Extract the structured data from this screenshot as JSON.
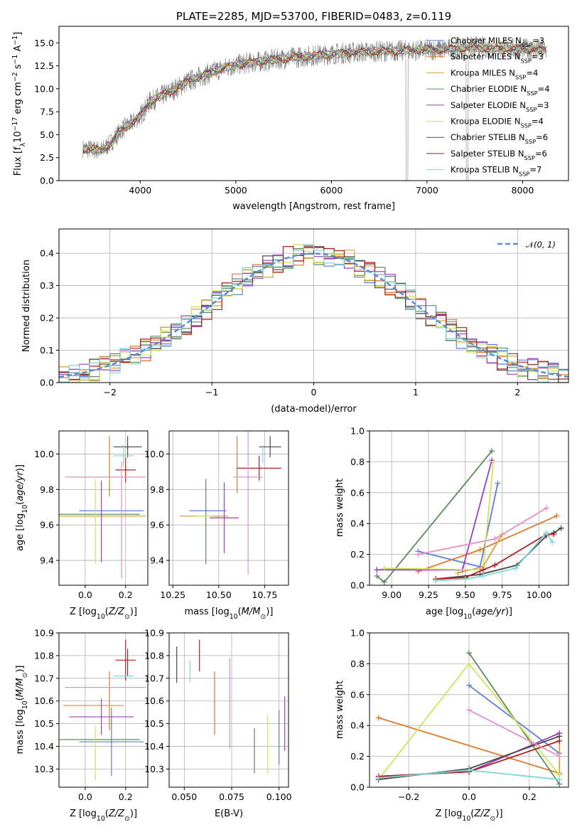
{
  "title": "PLATE=2285, MJD=53700, FIBERID=0483, z=0.119",
  "colors": {
    "Chabrier MILES": "#5b7fd6",
    "Salpeter MILES": "#e0782a",
    "Kroupa MILES": "#d8a234",
    "Chabrier ELODIE": "#5d8c5d",
    "Salpeter ELODIE": "#9b3fc2",
    "Kroupa ELODIE": "#cfe35a",
    "Chabrier STELIB": "#4a4a4a",
    "Salpeter STELIB": "#b01f1f",
    "Kroupa STELIB": "#7fd6d6",
    "extra": "#e98ec7",
    "data": "#808080"
  },
  "legend": [
    {
      "model": "Chabrier MILES",
      "nssp": "3"
    },
    {
      "model": "Salpeter MILES",
      "nssp": "3"
    },
    {
      "model": "Kroupa MILES",
      "nssp": "4"
    },
    {
      "model": "Chabrier ELODIE",
      "nssp": "4"
    },
    {
      "model": "Salpeter ELODIE",
      "nssp": "3"
    },
    {
      "model": "Kroupa ELODIE",
      "nssp": "4"
    },
    {
      "model": "Chabrier STELIB",
      "nssp": "6"
    },
    {
      "model": "Salpeter STELIB",
      "nssp": "6"
    },
    {
      "model": "Kroupa STELIB",
      "nssp": "7"
    }
  ],
  "chart_data": [
    {
      "id": "spectrum",
      "type": "line",
      "xlabel": "wavelength [Angstrom, rest frame]",
      "ylabel": "Flux [f_λ10^-17 erg cm^-2 s^-1 A^-1]",
      "xlim": [
        3150,
        8480
      ],
      "ylim": [
        0,
        16.8
      ],
      "xticks": [
        4000,
        5000,
        6000,
        7000,
        8000
      ],
      "yticks": [
        0.0,
        2.5,
        5.0,
        7.5,
        10.0,
        12.5,
        15.0
      ],
      "continuum": {
        "x": [
          3400,
          3600,
          3700,
          3800,
          3900,
          4000,
          4100,
          4300,
          4500,
          4800,
          5000,
          5200,
          5500,
          5800,
          6000,
          6300,
          6600,
          6900,
          7200,
          7500,
          7800,
          8100,
          8250
        ],
        "y": [
          3.5,
          3.3,
          4.2,
          5.5,
          6.2,
          7.0,
          8.6,
          9.6,
          10.8,
          12.0,
          12.6,
          12.9,
          13.3,
          13.6,
          13.8,
          14.0,
          14.1,
          14.2,
          14.3,
          14.5,
          14.4,
          14.3,
          14.2
        ]
      }
    },
    {
      "id": "residuals",
      "type": "step",
      "xlabel": "(data-model)/error",
      "ylabel": "Normed distribution",
      "xlim": [
        -2.5,
        2.5
      ],
      "ylim": [
        0,
        0.475
      ],
      "xticks": [
        -2,
        -1,
        0,
        1,
        2
      ],
      "yticks": [
        0.0,
        0.1,
        0.2,
        0.3,
        0.4
      ],
      "legend": "N(0,1)",
      "gaussian": {
        "mean": 0,
        "sigma": 1
      }
    },
    {
      "id": "age_vs_Z",
      "type": "errorbar",
      "xlabel": "Z [log10(Z/Z⊙)]",
      "ylabel": "age  [log10(age/yr)]",
      "xlim": [
        -0.13,
        0.31
      ],
      "ylim": [
        9.26,
        10.13
      ],
      "xticks": [
        0.0,
        0.2
      ],
      "yticks": [
        9.4,
        9.6,
        9.8,
        10.0
      ],
      "points": [
        {
          "model": "Chabrier MILES",
          "x": 0.13,
          "xerr": 0.16,
          "y": 9.68,
          "yerr": 0.0
        },
        {
          "model": "Salpeter MILES",
          "x": 0.12,
          "xerr": 0.0,
          "y": 9.93,
          "yerr": 0.17
        },
        {
          "model": "Kroupa MILES",
          "x": 0.04,
          "xerr": 0.26,
          "y": 9.65,
          "yerr": 0.0
        },
        {
          "model": "Chabrier ELODIE",
          "x": 0.05,
          "xerr": 0.22,
          "y": 9.66,
          "yerr": 0.0
        },
        {
          "model": "Salpeter ELODIE",
          "x": 0.08,
          "xerr": 0.0,
          "y": 9.62,
          "yerr": 0.23
        },
        {
          "model": "Kroupa ELODIE",
          "x": 0.05,
          "xerr": 0.0,
          "y": 9.62,
          "yerr": 0.24
        },
        {
          "model": "Chabrier STELIB",
          "x": 0.21,
          "xerr": 0.07,
          "y": 10.04,
          "yerr": 0.06
        },
        {
          "model": "Salpeter STELIB",
          "x": 0.2,
          "xerr": 0.05,
          "y": 9.91,
          "yerr": 0.07
        },
        {
          "model": "Kroupa STELIB",
          "x": 0.19,
          "xerr": 0.05,
          "y": 9.99,
          "yerr": 0.06
        },
        {
          "model": "extra",
          "x": 0.18,
          "xerr": 0.0,
          "y": 9.63,
          "yerr": 0.33
        },
        {
          "model": "extra",
          "x": 0.1,
          "xerr": 0.2,
          "y": 9.87,
          "yerr": 0.0
        }
      ]
    },
    {
      "id": "age_vs_mass",
      "type": "errorbar",
      "xlabel": "mass [log10(M/M⊙)]",
      "ylabel": "",
      "xlim": [
        10.23,
        10.88
      ],
      "ylim": [
        9.26,
        10.13
      ],
      "xticks": [
        10.25,
        10.5,
        10.75
      ],
      "yticks": [
        9.4,
        9.6,
        9.8,
        10.0
      ],
      "points": [
        {
          "model": "Chabrier MILES",
          "x": 10.44,
          "xerr": 0.1,
          "y": 9.68,
          "yerr": 0.0
        },
        {
          "model": "Salpeter MILES",
          "x": 10.6,
          "xerr": 0.0,
          "y": 9.94,
          "yerr": 0.16
        },
        {
          "model": "Kroupa MILES",
          "x": 10.42,
          "xerr": 0.13,
          "y": 9.65,
          "yerr": 0.0
        },
        {
          "model": "Chabrier ELODIE",
          "x": 10.43,
          "xerr": 0.0,
          "y": 9.62,
          "yerr": 0.24
        },
        {
          "model": "Salpeter ELODIE",
          "x": 10.53,
          "xerr": 0.08,
          "y": 9.64,
          "yerr": 0.2
        },
        {
          "model": "Kroupa ELODIE",
          "x": 10.42,
          "xerr": 0.05,
          "y": 9.65,
          "yerr": 0.0
        },
        {
          "model": "Chabrier STELIB",
          "x": 10.78,
          "xerr": 0.06,
          "y": 10.04,
          "yerr": 0.06
        },
        {
          "model": "Salpeter STELIB",
          "x": 10.72,
          "xerr": 0.12,
          "y": 9.92,
          "yerr": 0.07
        },
        {
          "model": "Kroupa STELIB",
          "x": 10.74,
          "xerr": 0.0,
          "y": 10.0,
          "yerr": 0.05
        },
        {
          "model": "extra",
          "x": 10.66,
          "xerr": 0.08,
          "y": 9.87,
          "yerr": 0.55
        }
      ]
    },
    {
      "id": "weight_vs_age",
      "type": "line",
      "xlabel": "age  [log10(age/yr)]",
      "ylabel": "mass weight",
      "xlim": [
        8.85,
        10.2
      ],
      "ylim": [
        0,
        1.0
      ],
      "xticks": [
        9.0,
        9.25,
        9.5,
        9.75,
        10.0
      ],
      "yticks": [
        0.0,
        0.2,
        0.4,
        0.6,
        0.8,
        1.0
      ],
      "series": [
        {
          "model": "Chabrier MILES",
          "x": [
            9.18,
            9.6,
            9.72
          ],
          "y": [
            0.22,
            0.12,
            0.66
          ]
        },
        {
          "model": "Salpeter MILES",
          "x": [
            9.18,
            9.6,
            10.12
          ],
          "y": [
            0.09,
            0.23,
            0.45
          ]
        },
        {
          "model": "Kroupa MILES",
          "x": [
            9.45,
            9.62,
            9.75
          ],
          "y": [
            0.08,
            0.12,
            0.33
          ]
        },
        {
          "model": "Chabrier ELODIE",
          "x": [
            8.9,
            8.95,
            9.68
          ],
          "y": [
            0.06,
            0.02,
            0.87
          ]
        },
        {
          "model": "Salpeter ELODIE",
          "x": [
            8.9,
            9.48,
            9.68
          ],
          "y": [
            0.1,
            0.1,
            0.81
          ]
        },
        {
          "model": "Kroupa ELODIE",
          "x": [
            8.95,
            9.62,
            9.69
          ],
          "y": [
            0.11,
            0.1,
            0.8
          ]
        },
        {
          "model": "Chabrier STELIB",
          "x": [
            9.3,
            9.6,
            9.85,
            10.05,
            10.1,
            10.15
          ],
          "y": [
            0.04,
            0.07,
            0.13,
            0.32,
            0.34,
            0.37
          ]
        },
        {
          "model": "Salpeter STELIB",
          "x": [
            9.3,
            9.5,
            9.62,
            9.7,
            10.05,
            10.1
          ],
          "y": [
            0.04,
            0.05,
            0.1,
            0.13,
            0.33,
            0.33
          ]
        },
        {
          "model": "Kroupa STELIB",
          "x": [
            9.3,
            9.5,
            9.62,
            9.84,
            10.05,
            10.09
          ],
          "y": [
            0.03,
            0.04,
            0.06,
            0.11,
            0.34,
            0.28
          ]
        },
        {
          "model": "extra",
          "x": [
            9.18,
            9.7,
            10.05
          ],
          "y": [
            0.2,
            0.3,
            0.5
          ]
        }
      ]
    },
    {
      "id": "mass_vs_Z",
      "type": "errorbar",
      "xlabel": "Z [log10(Z/Z⊙)]",
      "ylabel": "mass [log10(M/M⊙)]",
      "xlim": [
        -0.13,
        0.31
      ],
      "ylim": [
        10.22,
        10.9
      ],
      "xticks": [
        0.0,
        0.2
      ],
      "yticks": [
        10.3,
        10.4,
        10.5,
        10.6,
        10.7,
        10.8,
        10.9
      ],
      "points": [
        {
          "model": "Chabrier MILES",
          "x": 0.13,
          "xerr": 0.16,
          "y": 10.42,
          "yerr": 0.15
        },
        {
          "model": "Salpeter MILES",
          "x": 0.12,
          "xerr": 0.0,
          "y": 10.6,
          "yerr": 0.13
        },
        {
          "model": "Kroupa MILES",
          "x": 0.04,
          "xerr": 0.15,
          "y": 10.58,
          "yerr": 0.0
        },
        {
          "model": "Chabrier ELODIE",
          "x": 0.05,
          "xerr": 0.22,
          "y": 10.43,
          "yerr": 0.0
        },
        {
          "model": "Salpeter ELODIE",
          "x": 0.08,
          "xerr": 0.16,
          "y": 10.53,
          "yerr": 0.08
        },
        {
          "model": "Kroupa ELODIE",
          "x": 0.05,
          "xerr": 0.0,
          "y": 10.37,
          "yerr": 0.12
        },
        {
          "model": "Chabrier STELIB",
          "x": 0.21,
          "xerr": 0.0,
          "y": 10.77,
          "yerr": 0.06
        },
        {
          "model": "Salpeter STELIB",
          "x": 0.2,
          "xerr": 0.05,
          "y": 10.78,
          "yerr": 0.09
        },
        {
          "model": "Kroupa STELIB",
          "x": 0.19,
          "xerr": 0.05,
          "y": 10.71,
          "yerr": 0.0
        },
        {
          "model": "extra",
          "x": 0.1,
          "xerr": 0.2,
          "y": 10.66,
          "yerr": 0.0
        }
      ]
    },
    {
      "id": "mass_vs_EBV",
      "type": "errorbar",
      "xlabel": "E(B-V)",
      "ylabel": "",
      "xlim": [
        0.042,
        0.105
      ],
      "ylim": [
        10.22,
        10.9
      ],
      "xticks": [
        0.05,
        0.075,
        0.1
      ],
      "yticks": [
        10.3,
        10.4,
        10.5,
        10.6,
        10.7,
        10.8,
        10.9
      ],
      "points": [
        {
          "model": "Chabrier MILES",
          "x": 0.1,
          "xerr": 0.0,
          "y": 10.44,
          "yerr": 0.12
        },
        {
          "model": "Salpeter MILES",
          "x": 0.066,
          "xerr": 0.0,
          "y": 10.59,
          "yerr": 0.14
        },
        {
          "model": "Chabrier STELIB",
          "x": 0.046,
          "xerr": 0.0,
          "y": 10.76,
          "yerr": 0.08
        },
        {
          "model": "Salpeter STELIB",
          "x": 0.058,
          "xerr": 0.0,
          "y": 10.8,
          "yerr": 0.07
        },
        {
          "model": "Kroupa STELIB",
          "x": 0.053,
          "xerr": 0.0,
          "y": 10.73,
          "yerr": 0.05
        },
        {
          "model": "extra",
          "x": 0.074,
          "xerr": 0.0,
          "y": 10.59,
          "yerr": 0.2
        },
        {
          "model": "Chabrier ELODIE",
          "x": 0.087,
          "xerr": 0.0,
          "y": 10.38,
          "yerr": 0.1
        },
        {
          "model": "Kroupa ELODIE",
          "x": 0.094,
          "xerr": 0.0,
          "y": 10.41,
          "yerr": 0.13
        },
        {
          "model": "Salpeter ELODIE",
          "x": 0.103,
          "xerr": 0.0,
          "y": 10.5,
          "yerr": 0.12
        }
      ]
    },
    {
      "id": "weight_vs_Z",
      "type": "line",
      "xlabel": "Z [log10(Z/Z⊙)]",
      "ylabel": "mass weight",
      "xlim": [
        -0.33,
        0.33
      ],
      "ylim": [
        0,
        1.0
      ],
      "xticks": [
        -0.2,
        0.0,
        0.2
      ],
      "yticks": [
        0.0,
        0.2,
        0.4,
        0.6,
        0.8,
        1.0
      ],
      "series": [
        {
          "model": "Chabrier MILES",
          "x": [
            0.0,
            0.3
          ],
          "y": [
            0.66,
            0.22
          ]
        },
        {
          "model": "Salpeter MILES",
          "x": [
            -0.3,
            0.3
          ],
          "y": [
            0.45,
            0.09
          ]
        },
        {
          "model": "Kroupa MILES",
          "x": [
            0.3,
            0.3
          ],
          "y": [
            0.08,
            0.33
          ]
        },
        {
          "model": "Chabrier ELODIE",
          "x": [
            0.0,
            0.3
          ],
          "y": [
            0.87,
            0.02
          ]
        },
        {
          "model": "Salpeter ELODIE",
          "x": [
            -0.3,
            0.0,
            0.3
          ],
          "y": [
            0.07,
            0.1,
            0.35
          ]
        },
        {
          "model": "Kroupa ELODIE",
          "x": [
            -0.3,
            0.0,
            0.3
          ],
          "y": [
            0.05,
            0.8,
            0.08
          ]
        },
        {
          "model": "Chabrier STELIB",
          "x": [
            -0.3,
            0.0,
            0.3
          ],
          "y": [
            0.05,
            0.12,
            0.33
          ]
        },
        {
          "model": "Salpeter STELIB",
          "x": [
            -0.3,
            0.0,
            0.3
          ],
          "y": [
            0.07,
            0.1,
            0.3
          ]
        },
        {
          "model": "Kroupa STELIB",
          "x": [
            -0.3,
            0.0,
            0.3
          ],
          "y": [
            0.06,
            0.11,
            0.05
          ]
        },
        {
          "model": "extra",
          "x": [
            0.0,
            0.3
          ],
          "y": [
            0.5,
            0.2
          ]
        }
      ]
    }
  ]
}
